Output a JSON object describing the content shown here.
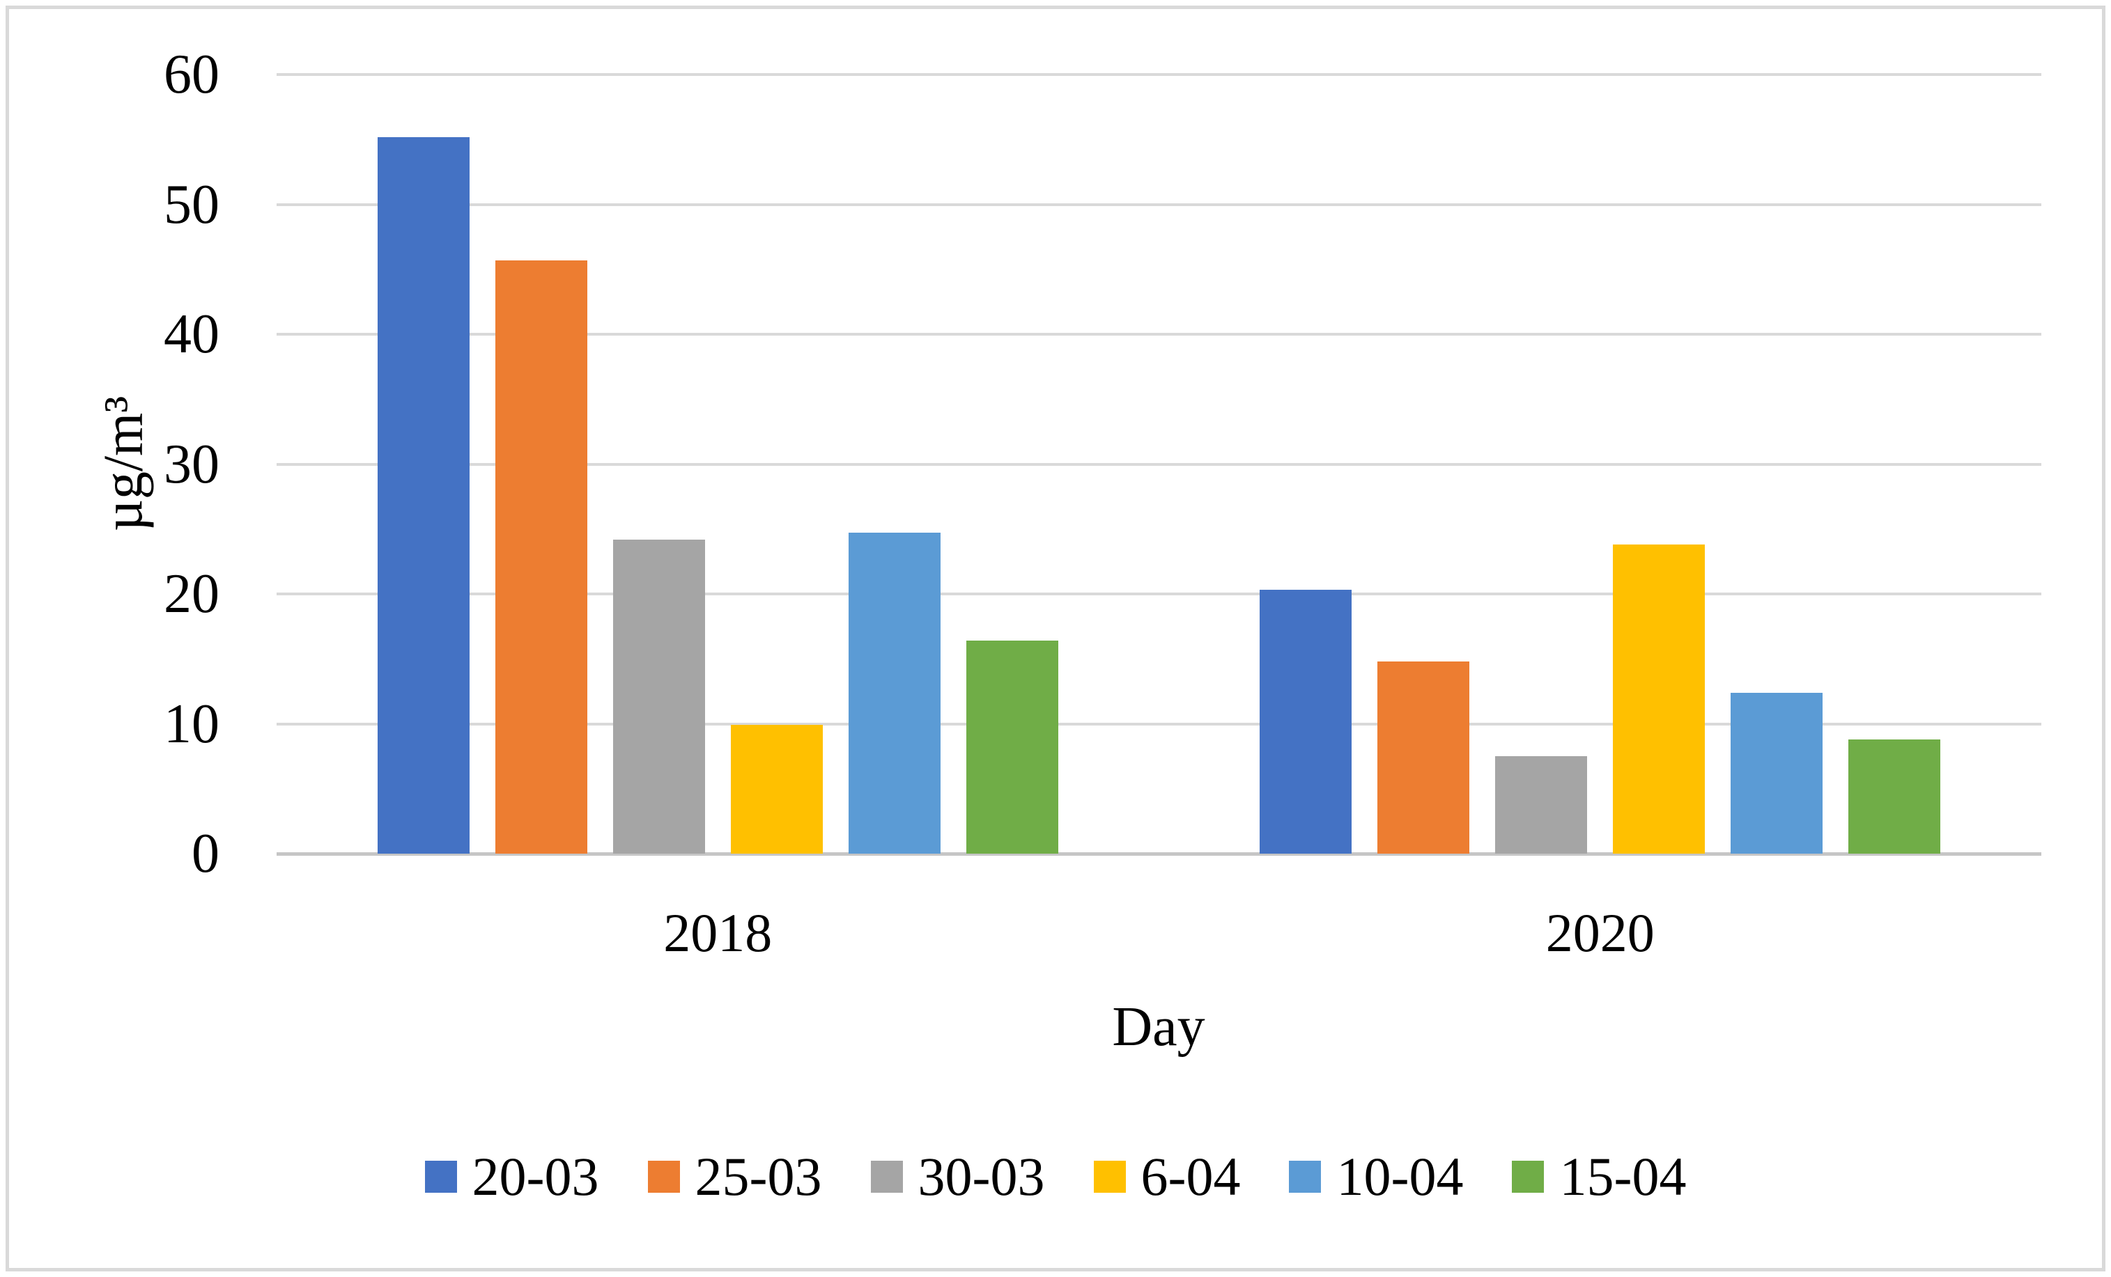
{
  "chart_data": {
    "type": "bar",
    "title": "",
    "xlabel": "Day",
    "ylabel": "µg/m³",
    "categories": [
      "2018",
      "2020"
    ],
    "series": [
      {
        "name": "20-03",
        "color": "#4472C4",
        "values": [
          55.2,
          20.3
        ]
      },
      {
        "name": "25-03",
        "color": "#ED7D31",
        "values": [
          45.7,
          14.8
        ]
      },
      {
        "name": "30-03",
        "color": "#A5A5A5",
        "values": [
          24.2,
          7.5
        ]
      },
      {
        "name": "6-04",
        "color": "#FFC000",
        "values": [
          9.9,
          23.8
        ]
      },
      {
        "name": "10-04",
        "color": "#5B9BD5",
        "values": [
          24.7,
          12.4
        ]
      },
      {
        "name": "15-04",
        "color": "#70AD47",
        "values": [
          16.4,
          8.8
        ]
      }
    ],
    "y_ticks": [
      0,
      10,
      20,
      30,
      40,
      50,
      60
    ],
    "ylim": [
      0,
      60
    ],
    "grid": true,
    "legend_position": "bottom",
    "gridline_color": "#D9D9D9",
    "axis_line_color": "#C6C6C6",
    "frame_color": "#D9D9D9",
    "text_color": "#000000"
  }
}
